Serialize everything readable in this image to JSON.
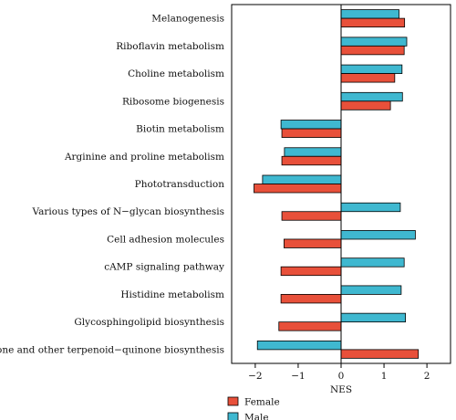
{
  "chart_data": {
    "type": "bar",
    "orientation": "horizontal",
    "categories": [
      "Melanogenesis",
      "Riboflavin metabolism",
      "Choline metabolism",
      "Ribosome biogenesis",
      "Biotin metabolism",
      "Arginine and proline metabolism",
      "Phototransduction",
      "Various types of N−glycan biosynthesis",
      "Cell adhesion molecules",
      "cAMP signaling pathway",
      "Histidine metabolism",
      "Glycosphingolipid biosynthesis",
      "Ubiquinone and other terpenoid−quinone biosynthesis"
    ],
    "series": [
      {
        "name": "Male",
        "color": "#3fb8d0",
        "values": [
          1.35,
          1.53,
          1.42,
          1.43,
          -1.4,
          -1.32,
          -1.83,
          1.38,
          1.73,
          1.47,
          1.4,
          1.5,
          -1.95
        ]
      },
      {
        "name": "Female",
        "color": "#e8503a",
        "values": [
          1.48,
          1.47,
          1.25,
          1.15,
          -1.38,
          -1.38,
          -2.03,
          -1.38,
          -1.33,
          -1.4,
          -1.4,
          -1.45,
          1.8
        ]
      }
    ],
    "xlabel": "NES",
    "ylabel": "",
    "title": "",
    "xlim": [
      -2.55,
      2.55
    ],
    "xticks": [
      -2,
      -1,
      0,
      1,
      2
    ],
    "xtick_labels": [
      "−2",
      "−1",
      "0",
      "1",
      "2"
    ],
    "grid": false,
    "legend": {
      "placement": "bottom-left",
      "order": [
        "Female",
        "Male"
      ]
    }
  }
}
